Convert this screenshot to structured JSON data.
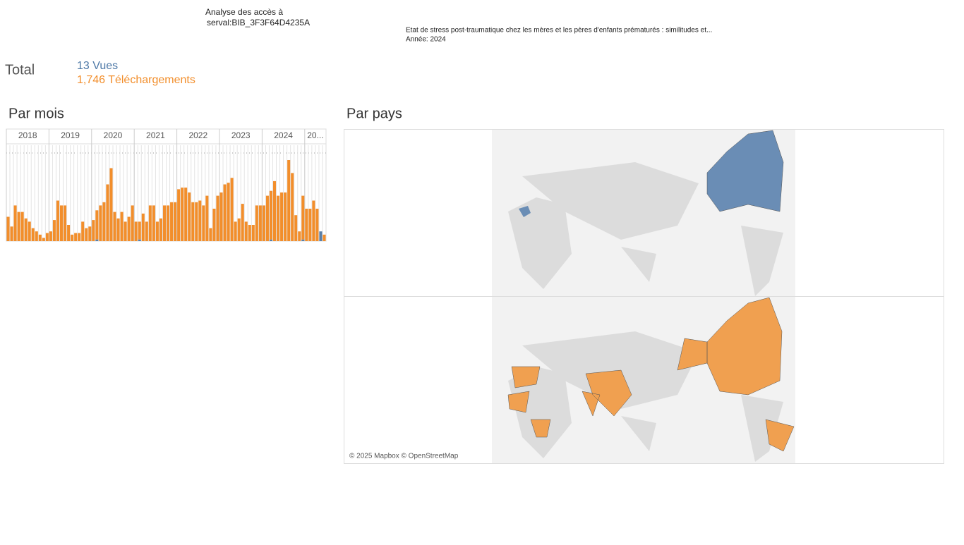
{
  "header": {
    "title_line1": "Analyse des accès à",
    "title_line2": "serval:BIB_3F3F64D4235A",
    "doc_title": "Etat de stress post-traumatique chez les mères et les pères d'enfants prématurés : similitudes et...",
    "year": "Année: 2024"
  },
  "totals": {
    "label": "Total",
    "views": "13 Vues",
    "downloads": "1,746 Téléchargements"
  },
  "sections": {
    "monthly": "Par mois",
    "country": "Par pays"
  },
  "map": {
    "attribution": "© 2025 Mapbox © OpenStreetMap"
  },
  "chart_data": {
    "type": "bar",
    "stacked": true,
    "years": [
      "2018",
      "2019",
      "2020",
      "2021",
      "2022",
      "2023",
      "2024",
      "20..."
    ],
    "categories": [
      null,
      null,
      null,
      null,
      null,
      null,
      null,
      null,
      null,
      null,
      null,
      null,
      null,
      null,
      null,
      null,
      null,
      null,
      null,
      null,
      null,
      null,
      null,
      null,
      null,
      null,
      null,
      null,
      null,
      null,
      null,
      null,
      null,
      null,
      null,
      null,
      null,
      null,
      null,
      null,
      null,
      null,
      null,
      null,
      null,
      null,
      null,
      null,
      null,
      null,
      null,
      null,
      null,
      null,
      null,
      null,
      null,
      null,
      null,
      null,
      null,
      null,
      null,
      null,
      null,
      null,
      null,
      null,
      null,
      null,
      null,
      null,
      null,
      null,
      null,
      null,
      null,
      null,
      null,
      null,
      null,
      null,
      null,
      null,
      null,
      null,
      null,
      null,
      null,
      null
    ],
    "ylim": [
      0,
      60
    ],
    "series": [
      {
        "color": "#5b7fa6",
        "values": [
          0,
          0,
          0,
          0,
          0,
          0,
          0,
          0,
          0,
          0,
          0,
          0,
          0,
          0,
          0,
          0,
          0,
          0,
          0,
          0,
          0,
          0,
          0,
          0,
          0,
          1,
          0,
          0,
          0,
          0,
          0,
          0,
          0,
          0,
          0,
          0,
          0,
          1,
          0,
          0,
          0,
          0,
          0,
          0,
          0,
          0,
          0,
          0,
          0,
          0,
          0,
          0,
          0,
          0,
          0,
          0,
          0,
          0,
          0,
          0,
          0,
          0,
          0,
          0,
          0,
          0,
          0,
          0,
          0,
          0,
          0,
          0,
          0,
          0,
          1,
          0,
          0,
          0,
          0,
          0,
          0,
          0,
          0,
          1,
          0,
          0,
          0,
          0,
          6,
          0
        ]
      },
      {
        "color": "#f28e2b",
        "values": [
          15,
          9,
          22,
          18,
          18,
          14,
          12,
          8,
          6,
          4,
          2,
          5,
          6,
          13,
          25,
          22,
          22,
          10,
          4,
          5,
          5,
          12,
          8,
          9,
          13,
          18,
          22,
          24,
          35,
          45,
          18,
          14,
          18,
          12,
          15,
          22,
          12,
          11,
          17,
          12,
          22,
          22,
          12,
          14,
          22,
          22,
          24,
          24,
          32,
          33,
          33,
          30,
          24,
          24,
          25,
          22,
          28,
          8,
          20,
          28,
          30,
          35,
          36,
          39,
          12,
          14,
          23,
          12,
          10,
          10,
          22,
          22,
          22,
          28,
          30,
          37,
          28,
          30,
          30,
          50,
          42,
          16,
          6,
          27,
          20,
          20,
          25,
          20,
          0,
          4
        ]
      }
    ]
  }
}
